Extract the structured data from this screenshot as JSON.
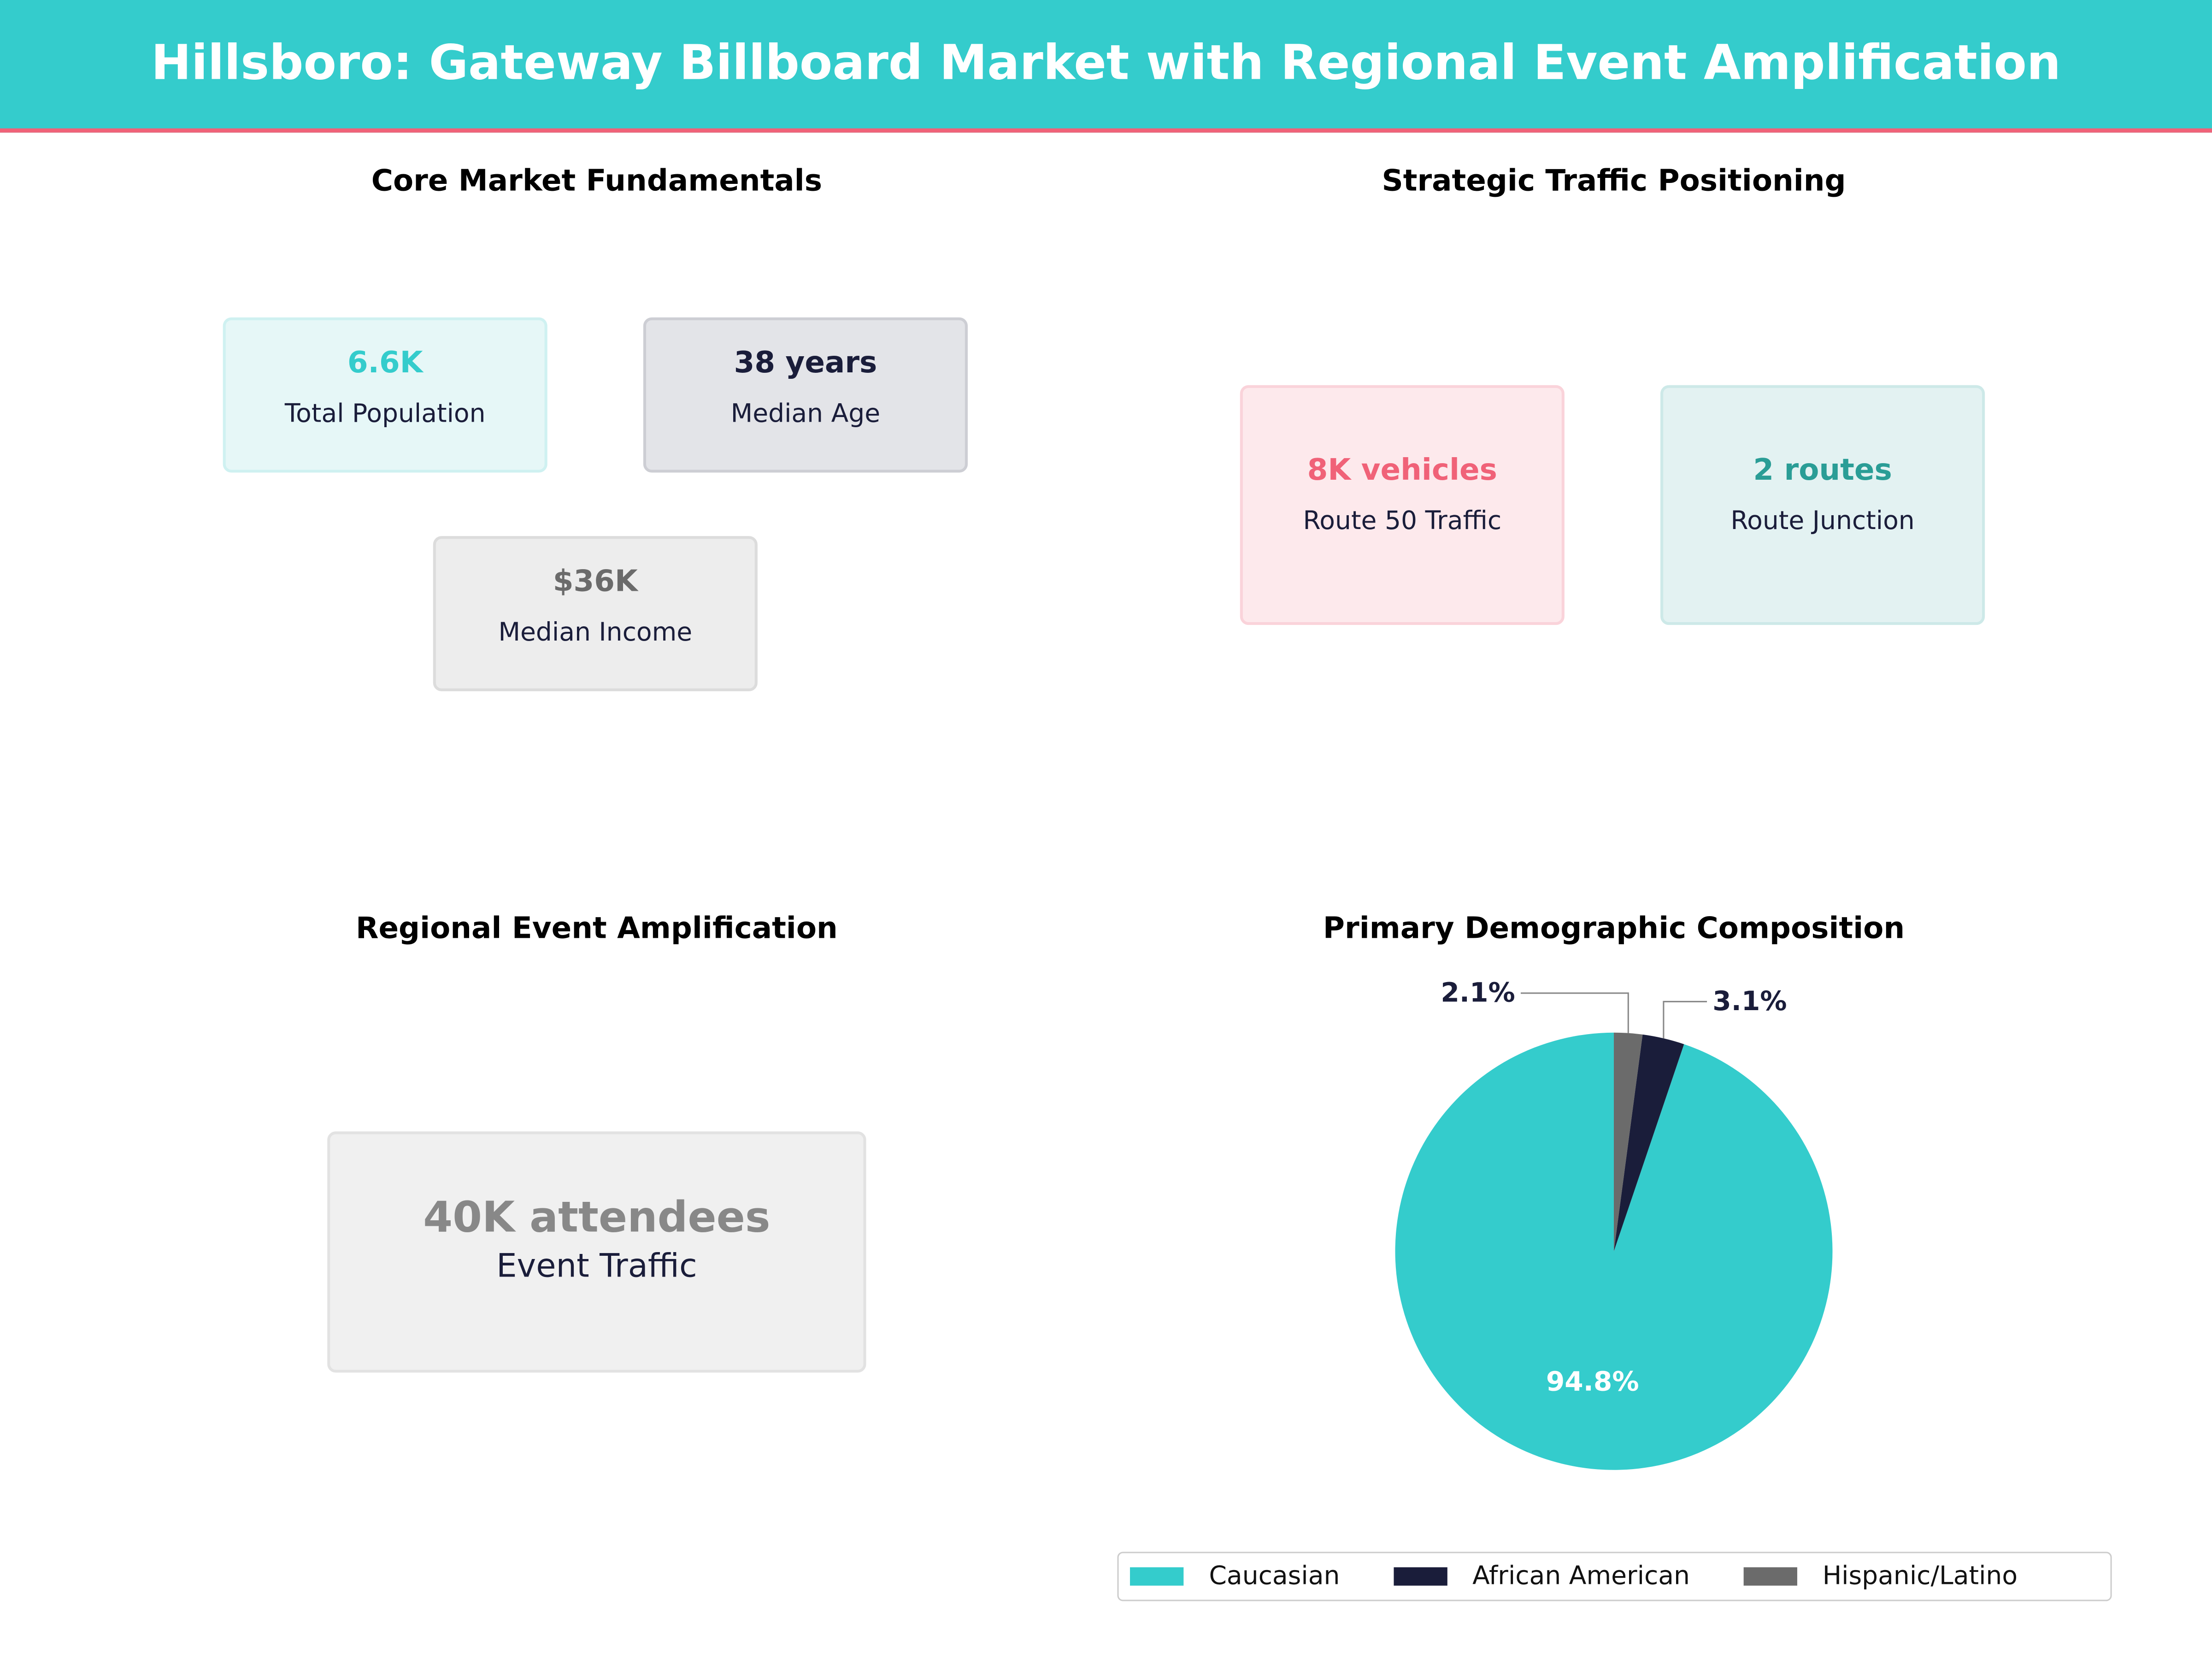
{
  "title": "Hillsboro: Gateway Billboard Market with Regional Event Amplification",
  "colors": {
    "header": "#34CCCC",
    "accent_line": "#F06278"
  },
  "panels": {
    "fundamentals": {
      "title": "Core Market Fundamentals",
      "cards": [
        {
          "value": "6.6K",
          "label": "Total Population",
          "color": "#34CCCC"
        },
        {
          "value": "38 years",
          "label": "Median Age",
          "color": "#1A1D3A"
        },
        {
          "value": "$36K",
          "label": "Median Income",
          "color": "#6B6B6B"
        }
      ]
    },
    "traffic": {
      "title": "Strategic Traffic Positioning",
      "cards": [
        {
          "value": "8K vehicles",
          "label": "Route 50 Traffic",
          "color": "#F06278"
        },
        {
          "value": "2 routes",
          "label": "Route Junction",
          "color": "#2A9D96"
        }
      ]
    },
    "events": {
      "title": "Regional Event Amplification",
      "card": {
        "value": "40K attendees",
        "label": "Event Traffic",
        "color": "#888888"
      }
    }
  },
  "chart_data": {
    "type": "pie",
    "title": "Primary Demographic Composition",
    "categories": [
      "Caucasian",
      "African American",
      "Hispanic/Latino"
    ],
    "values": [
      94.8,
      3.1,
      2.1
    ],
    "labels": [
      "94.8%",
      "3.1%",
      "2.1%"
    ],
    "colors": [
      "#34CCCC",
      "#1A1D3A",
      "#6B6B6B"
    ],
    "start_angle": 90,
    "legend": "bottom-right"
  }
}
